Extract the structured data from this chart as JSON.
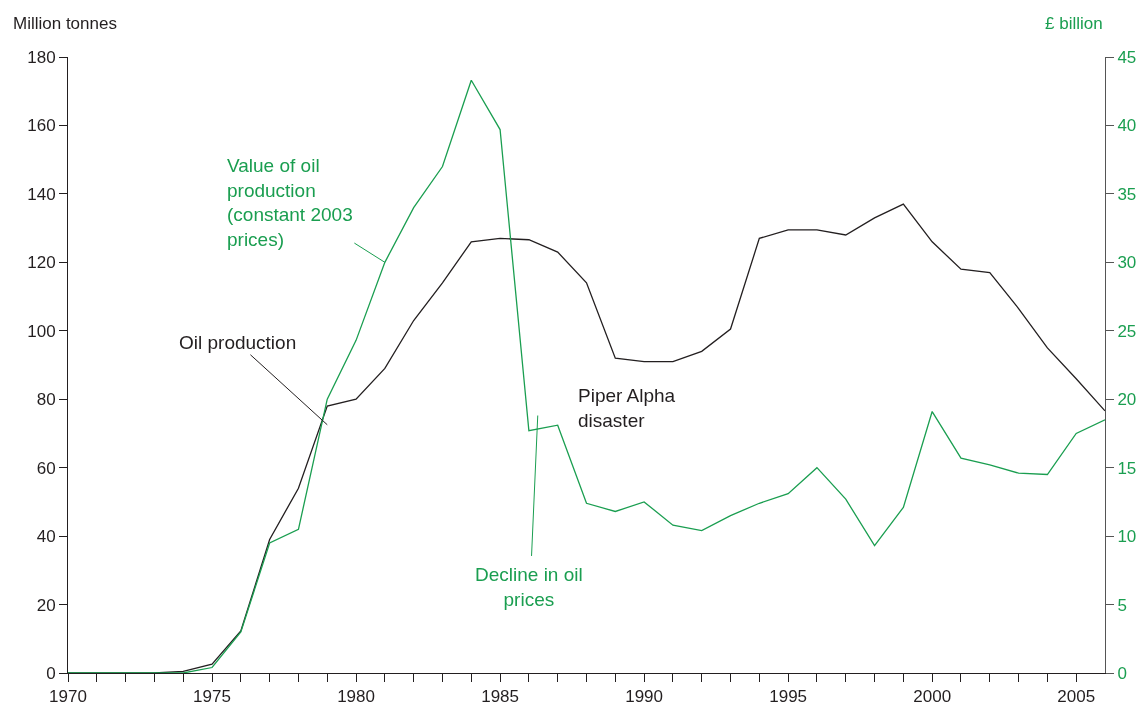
{
  "chart_data": {
    "type": "line",
    "ylabel": "Million tonnes",
    "y2label": "£ billion",
    "x": [
      1970,
      1971,
      1972,
      1973,
      1974,
      1975,
      1976,
      1977,
      1978,
      1979,
      1980,
      1981,
      1982,
      1983,
      1984,
      1985,
      1986,
      1987,
      1988,
      1989,
      1990,
      1991,
      1992,
      1993,
      1994,
      1995,
      1996,
      1997,
      1998,
      1999,
      2000,
      2001,
      2002,
      2003,
      2004,
      2005,
      2006
    ],
    "series": [
      {
        "name": "Oil production",
        "color": "#231f20",
        "values": [
          0,
          0,
          0,
          0,
          0.5,
          2.6,
          12.3,
          39,
          54,
          78,
          80,
          89,
          103,
          114,
          126,
          127,
          126.6,
          123,
          114,
          92,
          91,
          91,
          94,
          100.5,
          127,
          129.5,
          129.5,
          128,
          133,
          137,
          126,
          118,
          117,
          106.5,
          95,
          86,
          76.6
        ]
      },
      {
        "name": "Value of oil production (constant 2003 prices)",
        "color": "#1a9e50",
        "axis": "y2",
        "values": [
          0,
          0,
          0,
          0,
          0,
          0.4,
          3,
          9.5,
          10.5,
          20,
          24.3,
          30,
          34,
          37,
          43.3,
          39.7,
          17.7,
          18.1,
          12.4,
          11.8,
          12.5,
          10.8,
          10.4,
          11.5,
          12.4,
          13.1,
          15,
          12.7,
          9.3,
          12.1,
          19.1,
          15.7,
          15.2,
          14.6,
          14.5,
          17.5,
          18.5
        ]
      }
    ],
    "annotations": [
      "Decline in oil prices",
      "Piper Alpha disaster"
    ],
    "xlim": [
      1970,
      2006
    ],
    "xticks": [
      1970,
      {
        "value": 1971,
        "label": null
      },
      {
        "value": 1972,
        "label": null
      },
      {
        "value": 1973,
        "label": null
      },
      {
        "value": 1974,
        "label": null
      },
      1975,
      {
        "value": 1976,
        "label": null
      },
      {
        "value": 1977,
        "label": null
      },
      {
        "value": 1978,
        "label": null
      },
      {
        "value": 1979,
        "label": null
      },
      1980,
      {
        "value": 1981,
        "label": null
      },
      {
        "value": 1982,
        "label": null
      },
      {
        "value": 1983,
        "label": null
      },
      {
        "value": 1984,
        "label": null
      },
      1985,
      {
        "value": 1986,
        "label": null
      },
      {
        "value": 1987,
        "label": null
      },
      {
        "value": 1988,
        "label": null
      },
      {
        "value": 1989,
        "label": null
      },
      1990,
      {
        "value": 1991,
        "label": null
      },
      {
        "value": 1992,
        "label": null
      },
      {
        "value": 1993,
        "label": null
      },
      {
        "value": 1994,
        "label": null
      },
      1995,
      {
        "value": 1996,
        "label": null
      },
      {
        "value": 1997,
        "label": null
      },
      {
        "value": 1998,
        "label": null
      },
      {
        "value": 1999,
        "label": null
      },
      2000,
      {
        "value": 2001,
        "label": null
      },
      {
        "value": 2002,
        "label": null
      },
      {
        "value": 2003,
        "label": null
      },
      {
        "value": 2004,
        "label": null
      },
      2005
    ],
    "ylim": [
      0,
      180
    ],
    "yticks": [
      0,
      20,
      40,
      60,
      80,
      100,
      120,
      140,
      160,
      180
    ],
    "y2lim": [
      0,
      45
    ],
    "y2ticks": [
      0,
      5,
      10,
      15,
      20,
      25,
      30,
      35,
      40,
      45
    ],
    "grid": false,
    "legend": false,
    "marker": "none",
    "line_style": "solid"
  }
}
